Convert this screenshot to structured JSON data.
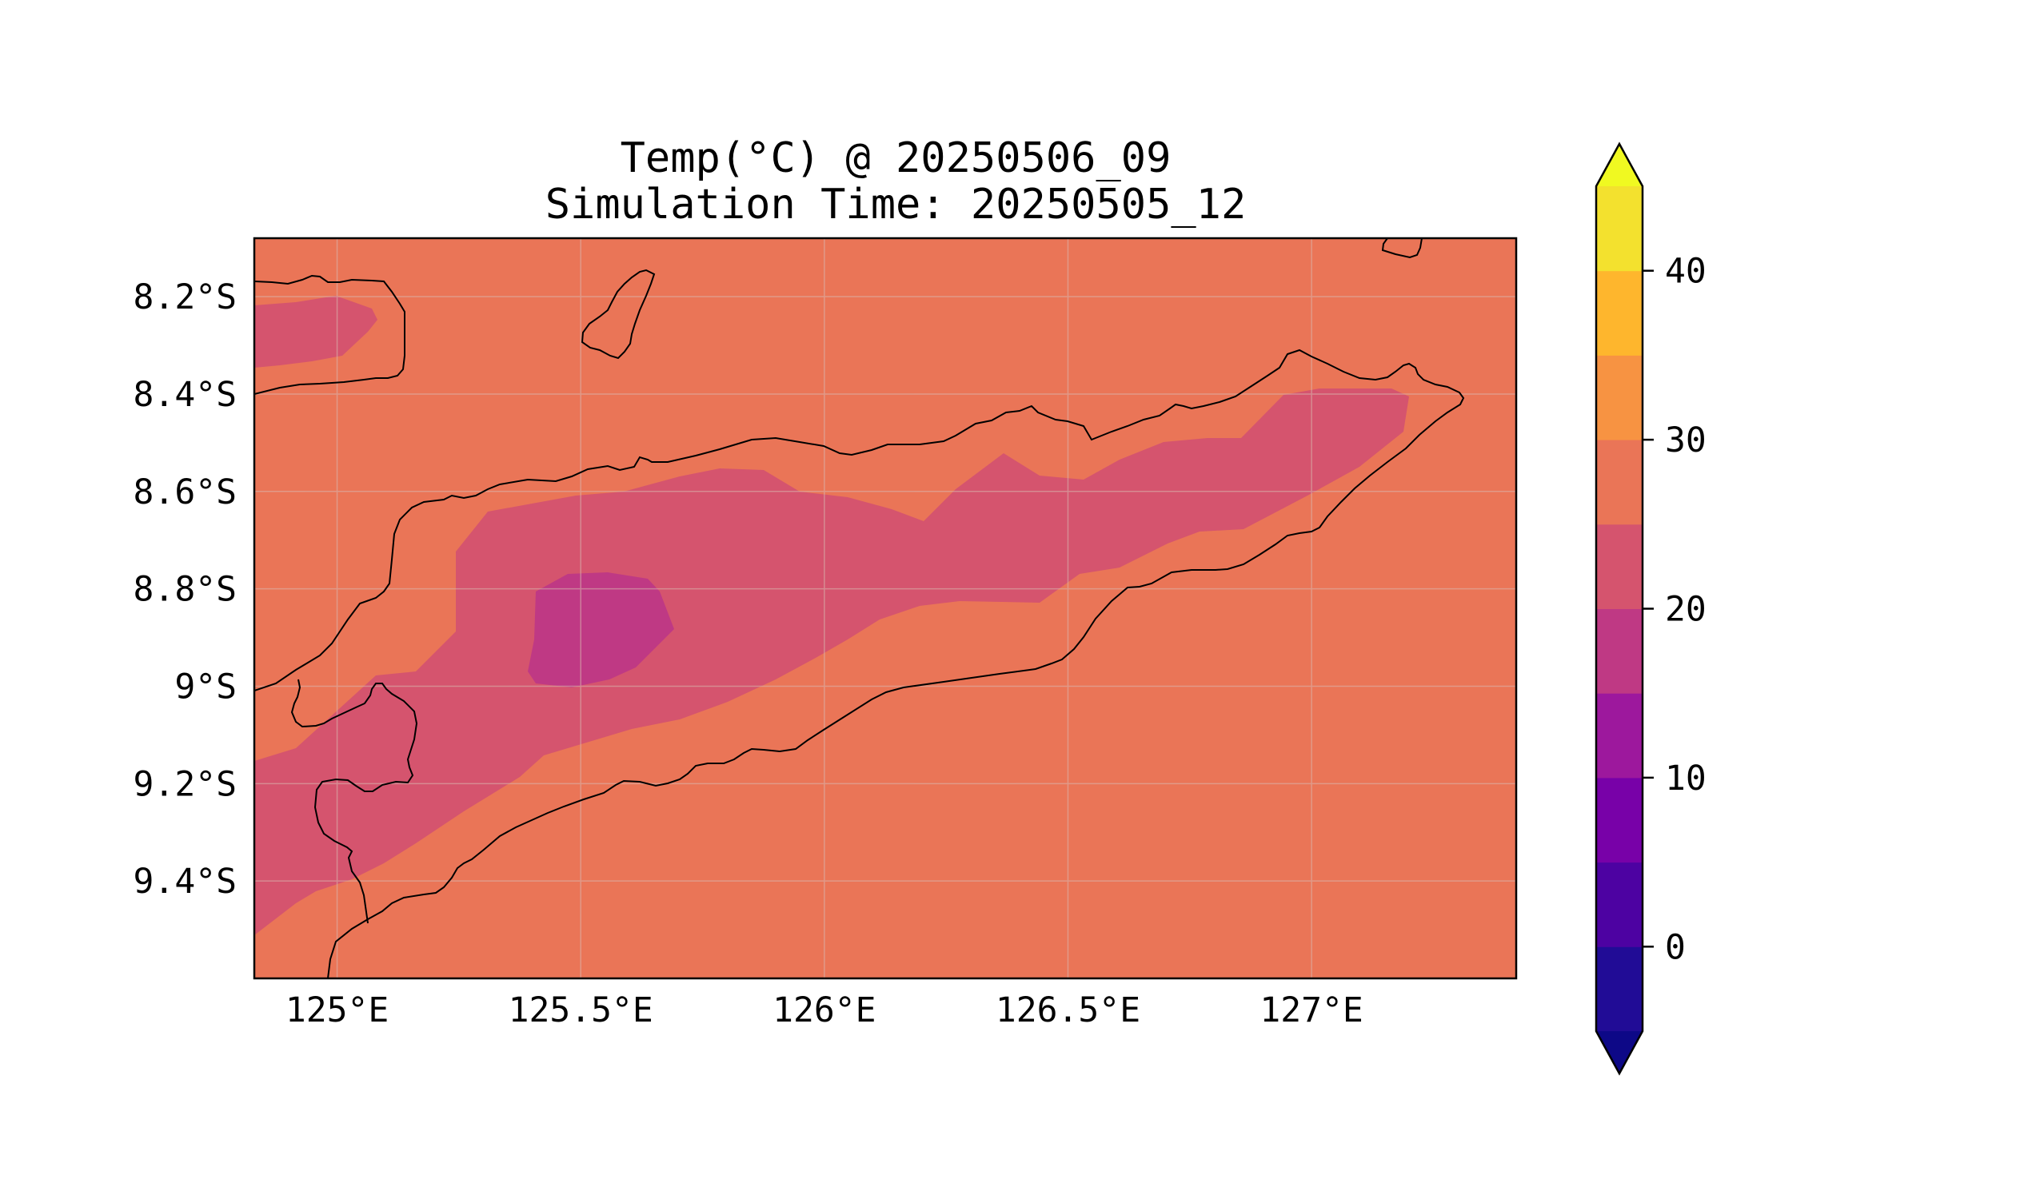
{
  "title": {
    "line1": "Temp(°C) @ 20250506_09",
    "line2": "Simulation Time: 20250505_12"
  },
  "map": {
    "extent": {
      "lon": [
        124.83,
        127.42
      ],
      "lat": [
        -9.6,
        -8.08
      ]
    },
    "x_ticks": [
      {
        "lon": 125.0,
        "label": "125°E"
      },
      {
        "lon": 125.5,
        "label": "125.5°E"
      },
      {
        "lon": 126.0,
        "label": "126°E"
      },
      {
        "lon": 126.5,
        "label": "126.5°E"
      },
      {
        "lon": 127.0,
        "label": "127°E"
      }
    ],
    "y_ticks": [
      {
        "lat": -8.2,
        "label": "8.2°S"
      },
      {
        "lat": -8.4,
        "label": "8.4°S"
      },
      {
        "lat": -8.6,
        "label": "8.6°S"
      },
      {
        "lat": -8.8,
        "label": "8.8°S"
      },
      {
        "lat": -9.0,
        "label": "9°S"
      },
      {
        "lat": -9.2,
        "label": "9.2°S"
      },
      {
        "lat": -9.4,
        "label": "9.4°S"
      }
    ],
    "gridlines": true,
    "background_level_color": "#ea7557",
    "contour_colors": {
      "15-20": "#bf3984",
      "20-25": "#d5546e",
      "25-30": "#ea7557"
    }
  },
  "colorbar": {
    "levels": [
      -5,
      0,
      5,
      10,
      15,
      20,
      25,
      30,
      35,
      40,
      45
    ],
    "colors": [
      "#210c96",
      "#4d02a2",
      "#7801a8",
      "#9d189d",
      "#bf3984",
      "#d5546e",
      "#ea7557",
      "#f79342",
      "#feb62d",
      "#f3e12e"
    ],
    "under_color": "#0d0887",
    "over_color": "#f0f921",
    "ticks": [
      {
        "value": 0,
        "label": "0"
      },
      {
        "value": 10,
        "label": "10"
      },
      {
        "value": 20,
        "label": "20"
      },
      {
        "value": 30,
        "label": "30"
      },
      {
        "value": 40,
        "label": "40"
      }
    ],
    "extend": "both"
  }
}
